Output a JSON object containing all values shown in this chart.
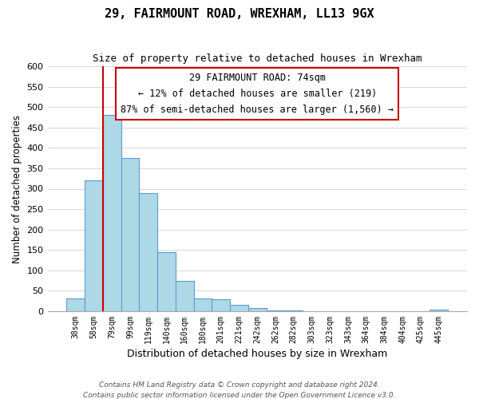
{
  "title": "29, FAIRMOUNT ROAD, WREXHAM, LL13 9GX",
  "subtitle": "Size of property relative to detached houses in Wrexham",
  "xlabel": "Distribution of detached houses by size in Wrexham",
  "ylabel": "Number of detached properties",
  "bar_labels": [
    "38sqm",
    "58sqm",
    "79sqm",
    "99sqm",
    "119sqm",
    "140sqm",
    "160sqm",
    "180sqm",
    "201sqm",
    "221sqm",
    "242sqm",
    "262sqm",
    "282sqm",
    "303sqm",
    "323sqm",
    "343sqm",
    "364sqm",
    "384sqm",
    "404sqm",
    "425sqm",
    "445sqm"
  ],
  "bar_values": [
    32,
    320,
    480,
    375,
    290,
    145,
    75,
    32,
    30,
    16,
    8,
    2,
    1,
    0,
    0,
    0,
    0,
    0,
    0,
    0,
    3
  ],
  "bar_color": "#add8e6",
  "bar_edge_color": "#5b9bd5",
  "vline_color": "#cc0000",
  "vline_position": 1.5,
  "ylim": [
    0,
    600
  ],
  "yticks": [
    0,
    50,
    100,
    150,
    200,
    250,
    300,
    350,
    400,
    450,
    500,
    550,
    600
  ],
  "annotation_title": "29 FAIRMOUNT ROAD: 74sqm",
  "annotation_line1": "← 12% of detached houses are smaller (219)",
  "annotation_line2": "87% of semi-detached houses are larger (1,560) →",
  "annotation_box_edge": "#cc0000",
  "footer1": "Contains HM Land Registry data © Crown copyright and database right 2024.",
  "footer2": "Contains public sector information licensed under the Open Government Licence v3.0.",
  "bg_color": "#ffffff",
  "grid_color": "#d0d0d8"
}
